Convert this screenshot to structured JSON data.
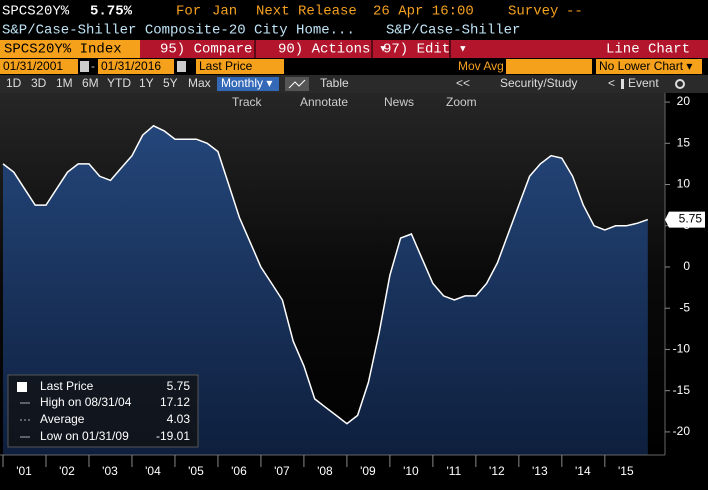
{
  "header": {
    "ticker": "SPCS20Y%",
    "last": "5.75%",
    "for_label": "For",
    "for_value": "Jan",
    "release_label": "Next Release",
    "release_value": "26 Apr 16:00",
    "survey_label": "Survey",
    "survey_value": "--",
    "name": "S&P/Case-Shiller Composite-20 City Home...",
    "source": "S&P/Case-Shiller"
  },
  "menu": {
    "security": "SPCS20Y% Index",
    "compare": "95) Compare",
    "actions": "90) Actions ▾",
    "edit": "97) Edit ▾",
    "chart_type": "Line Chart"
  },
  "settings": {
    "start": "01/31/2001",
    "dash": "-",
    "end": "01/31/2016",
    "field": "Last Price",
    "mov_avg": "Mov Avg",
    "lower": "No Lower Chart ▾"
  },
  "periods": {
    "buttons": [
      "1D",
      "3D",
      "1M",
      "6M",
      "YTD",
      "1Y",
      "5Y",
      "Max"
    ],
    "frequency": "Monthly ▾",
    "table": "Table",
    "back": "<<",
    "study": "Security/Study",
    "prev": "<",
    "event": "Event"
  },
  "tools": [
    "Track",
    "Annotate",
    "News",
    "Zoom"
  ],
  "chart_data": {
    "type": "line",
    "x": [
      2001,
      2001.25,
      2001.5,
      2001.75,
      2002,
      2002.25,
      2002.5,
      2002.75,
      2003,
      2003.25,
      2003.5,
      2003.75,
      2004,
      2004.25,
      2004.5,
      2004.75,
      2005,
      2005.25,
      2005.5,
      2005.75,
      2006,
      2006.25,
      2006.5,
      2006.75,
      2007,
      2007.25,
      2007.5,
      2007.75,
      2008,
      2008.25,
      2008.5,
      2008.75,
      2009,
      2009.25,
      2009.5,
      2009.75,
      2010,
      2010.25,
      2010.5,
      2010.75,
      2011,
      2011.25,
      2011.5,
      2011.75,
      2012,
      2012.25,
      2012.5,
      2012.75,
      2013,
      2013.25,
      2013.5,
      2013.75,
      2014,
      2014.25,
      2014.5,
      2014.75,
      2015,
      2015.25,
      2015.5,
      2015.75,
      2016
    ],
    "series": [
      {
        "name": "Last Price",
        "color": "#ffffff",
        "fill": "#1d3b68",
        "values": [
          12.5,
          11.5,
          9.5,
          7.5,
          7.5,
          9.5,
          11.5,
          12.5,
          12.5,
          11,
          10.5,
          12,
          13.5,
          16,
          17.12,
          16.5,
          15.5,
          15.5,
          15.5,
          15,
          14,
          10,
          6,
          3,
          0,
          -2,
          -4,
          -9,
          -12,
          -16,
          -17,
          -18,
          -19.01,
          -18,
          -14,
          -8,
          -1,
          3.5,
          4,
          1,
          -2,
          -3.5,
          -4,
          -3.5,
          -3.5,
          -2,
          0.5,
          4,
          7.5,
          11,
          12.5,
          13.5,
          13.2,
          11,
          7.5,
          5,
          4.5,
          5,
          5,
          5.3,
          5.75
        ]
      }
    ],
    "xlim": [
      2000.93,
      2016.4
    ],
    "ylim": [
      -22.8,
      21.1
    ],
    "yticks": [
      20,
      15,
      10,
      5,
      0,
      -5,
      -10,
      -15,
      -20
    ],
    "xticks": [
      {
        "value": 2001,
        "label": "'01"
      },
      {
        "value": 2002,
        "label": "'02"
      },
      {
        "value": 2003,
        "label": "'03"
      },
      {
        "value": 2004,
        "label": "'04"
      },
      {
        "value": 2005,
        "label": "'05"
      },
      {
        "value": 2006,
        "label": "'06"
      },
      {
        "value": 2007,
        "label": "'07"
      },
      {
        "value": 2008,
        "label": "'08"
      },
      {
        "value": 2009,
        "label": "'09"
      },
      {
        "value": 2010,
        "label": "'10"
      },
      {
        "value": 2011,
        "label": "'11"
      },
      {
        "value": 2012,
        "label": "'12"
      },
      {
        "value": 2013,
        "label": "'13"
      },
      {
        "value": 2014,
        "label": "'14"
      },
      {
        "value": 2015,
        "label": "'15"
      }
    ],
    "grid": false,
    "stats": [
      {
        "label": "High on 08/31/04",
        "value": 17.12
      },
      {
        "label": "Average",
        "value": 4.03
      },
      {
        "label": "Low on 01/31/09",
        "value": -19.01
      }
    ]
  }
}
